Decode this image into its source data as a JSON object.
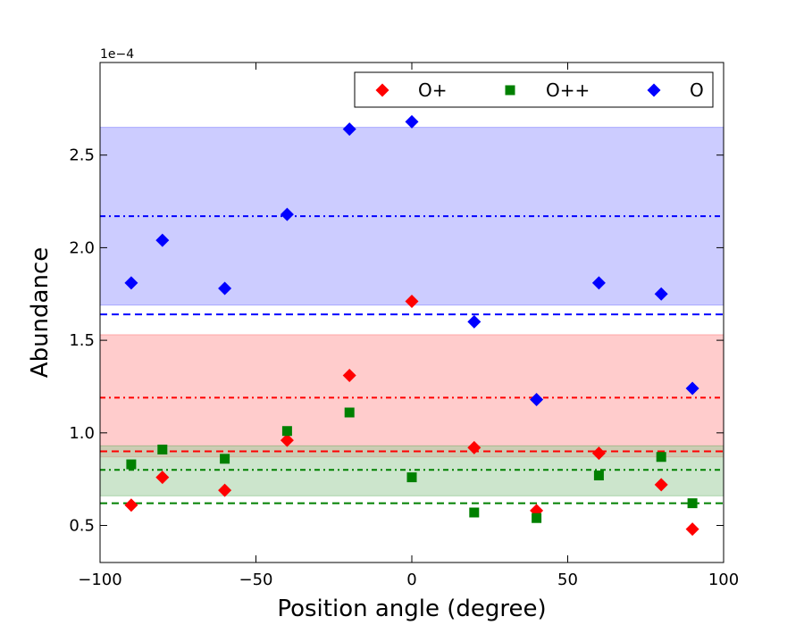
{
  "chart_data": {
    "type": "scatter",
    "title": "",
    "xlabel": "Position angle (degree)",
    "ylabel": "Abundance",
    "y_offset_text": "1e−4",
    "xlim": [
      -100,
      100
    ],
    "ylim": [
      0.3,
      3.0
    ],
    "x_ticks": [
      -100,
      -50,
      0,
      50,
      100
    ],
    "x_tick_labels": [
      "−100",
      "−50",
      "0",
      "50",
      "100"
    ],
    "y_ticks": [
      0.5,
      1.0,
      1.5,
      2.0,
      2.5
    ],
    "y_tick_labels": [
      "0.5",
      "1.0",
      "1.5",
      "2.0",
      "2.5"
    ],
    "grid": false,
    "legend_position": "top-right",
    "series": [
      {
        "name": "O+",
        "color": "#ff0000",
        "marker": "diamond",
        "x": [
          -90,
          -80,
          -60,
          -40,
          -20,
          0,
          20,
          40,
          60,
          80,
          90
        ],
        "y": [
          0.61,
          0.76,
          0.69,
          0.96,
          1.31,
          1.71,
          0.92,
          0.58,
          0.89,
          0.72,
          0.48
        ],
        "mean_line": 1.19,
        "band": [
          0.87,
          1.53
        ],
        "reference_line": 0.9,
        "band_fill": "#ff9999"
      },
      {
        "name": "O++",
        "color": "#008000",
        "marker": "square",
        "x": [
          -90,
          -80,
          -60,
          -40,
          -20,
          0,
          20,
          40,
          60,
          80,
          90
        ],
        "y": [
          0.83,
          0.91,
          0.86,
          1.01,
          1.11,
          0.76,
          0.57,
          0.54,
          0.77,
          0.87,
          0.62
        ],
        "mean_line": 0.8,
        "band": [
          0.66,
          0.93
        ],
        "reference_line": 0.62,
        "band_fill": "#99cc99"
      },
      {
        "name": "O",
        "color": "#0000ff",
        "marker": "diamond",
        "x": [
          -90,
          -80,
          -60,
          -40,
          -20,
          0,
          20,
          40,
          60,
          80,
          90
        ],
        "y": [
          1.81,
          2.04,
          1.78,
          2.18,
          2.64,
          2.68,
          1.6,
          1.18,
          1.81,
          1.75,
          1.24
        ],
        "mean_line": 2.17,
        "band": [
          1.69,
          2.65
        ],
        "reference_line": 1.64,
        "band_fill": "#9999ff"
      }
    ]
  }
}
